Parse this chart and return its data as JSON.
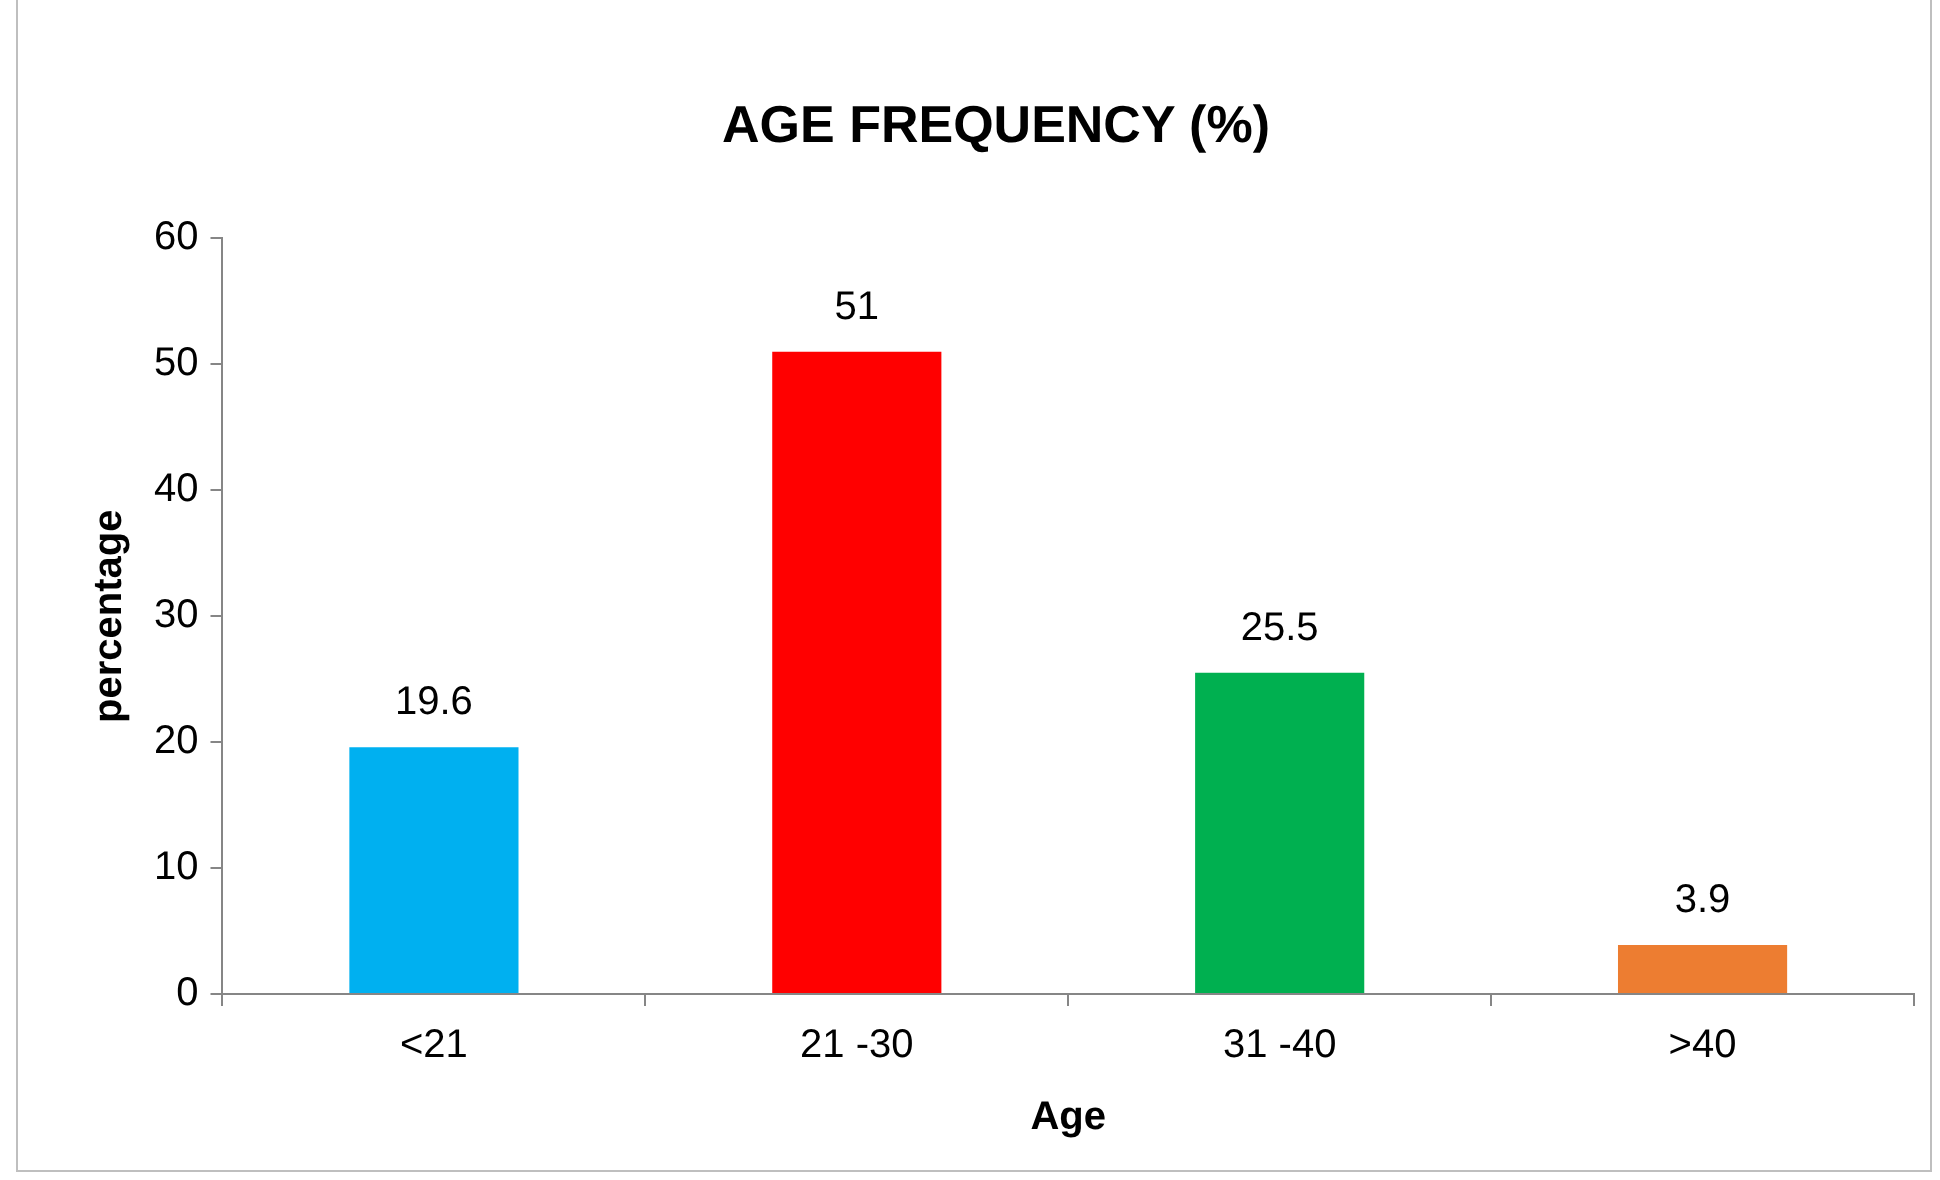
{
  "chart_data": {
    "type": "bar",
    "title": "AGE FREQUENCY (%)",
    "xlabel": "Age",
    "ylabel": "percentage",
    "categories": [
      "<21",
      "21 -30",
      "31 -40",
      ">40"
    ],
    "values": [
      19.6,
      51,
      25.5,
      3.9
    ],
    "colors": [
      "#00b0f0",
      "#ff0000",
      "#00b050",
      "#ed7d31"
    ],
    "ylim": [
      0,
      60
    ],
    "yticks": [
      0,
      10,
      20,
      30,
      40,
      50,
      60
    ],
    "grid": false,
    "legend": false,
    "data_labels": true
  }
}
